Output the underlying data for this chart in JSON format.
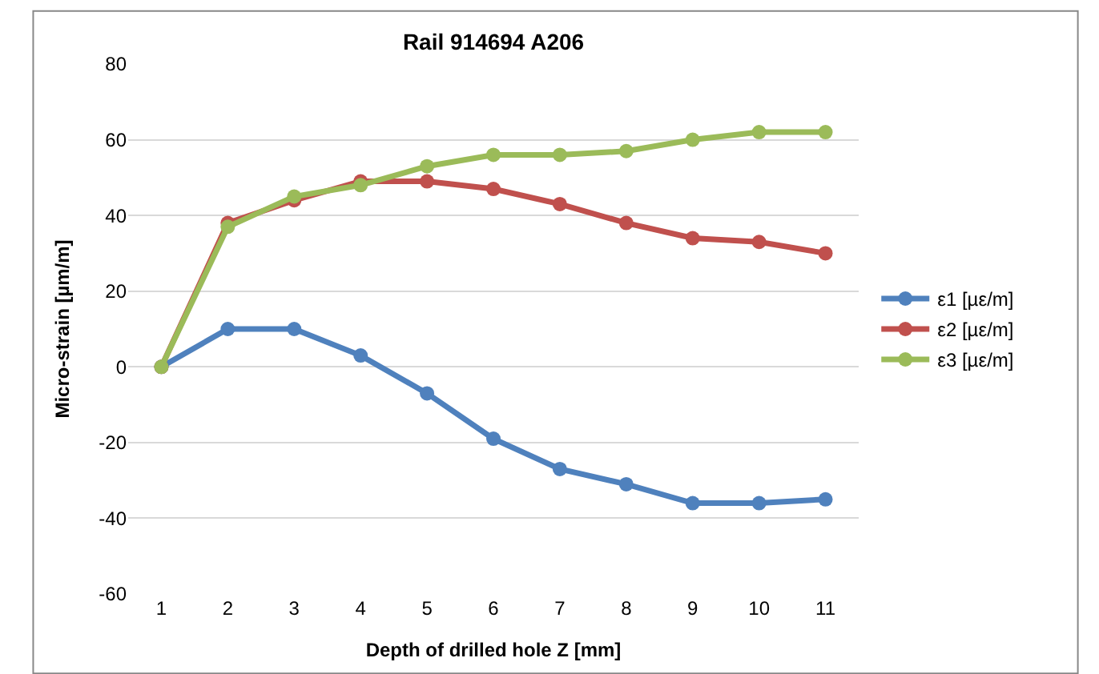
{
  "chart_data": {
    "type": "line",
    "title": "Rail 914694 A206",
    "xlabel": "Depth of drilled hole Z [mm]",
    "ylabel": "Micro-strain [µm/m]",
    "categories": [
      "1",
      "2",
      "3",
      "4",
      "5",
      "6",
      "7",
      "8",
      "9",
      "10",
      "11"
    ],
    "series": [
      {
        "name": "ε1 [µε/m]",
        "color": "#4f81bd",
        "values": [
          0,
          10,
          10,
          3,
          -7,
          -19,
          -27,
          -31,
          -36,
          -36,
          -35
        ]
      },
      {
        "name": "ε2 [µε/m]",
        "color": "#c0504d",
        "values": [
          0,
          38,
          44,
          49,
          49,
          47,
          43,
          38,
          34,
          33,
          30
        ]
      },
      {
        "name": "ε3 [µε/m]",
        "color": "#9bbb59",
        "values": [
          0,
          37,
          45,
          48,
          53,
          56,
          56,
          57,
          60,
          62,
          62
        ]
      }
    ],
    "ylim": [
      -60,
      80
    ],
    "yticks": [
      -60,
      -40,
      -20,
      0,
      20,
      40,
      60,
      80
    ],
    "grid": "y",
    "legend": "right",
    "marker": "circle",
    "line_style": "solid"
  }
}
